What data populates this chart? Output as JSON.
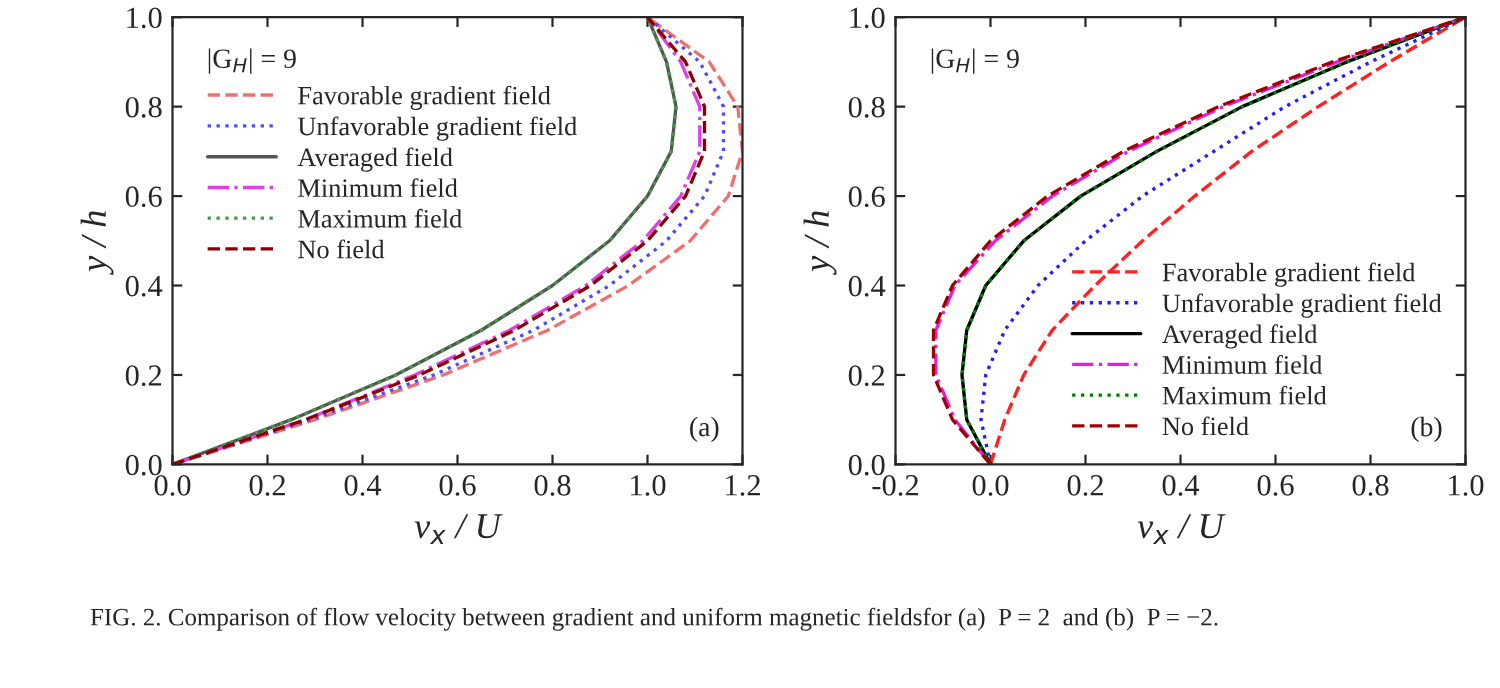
{
  "chart_data": [
    {
      "type": "line",
      "xlabel": "v$_{x}$ / U",
      "ylabel": "y / h",
      "annotations": [
        "|G$_{H}$| = 9",
        "(a)",
        "FIG. 2. Comparison of flow velocity between gradient and uniform magnetic fieldsfor (a)  P = 2  and (b)  P = −2."
      ],
      "xlim": [
        0,
        1.2
      ],
      "ylim": [
        0,
        1.0
      ],
      "xticks": [
        {
          "value": 0,
          "label": "0.0"
        },
        {
          "value": 0.2,
          "label": "0.2"
        },
        {
          "value": 0.4,
          "label": "0.4"
        },
        {
          "value": 0.6,
          "label": "0.6"
        },
        {
          "value": 0.8,
          "label": "0.8"
        },
        {
          "value": 1.0,
          "label": "1.0"
        },
        {
          "value": 1.2,
          "label": "1.2"
        }
      ],
      "yticks": [
        {
          "value": 0,
          "label": "0.0"
        },
        {
          "value": 0.2,
          "label": "0.2"
        },
        {
          "value": 0.4,
          "label": "0.4"
        },
        {
          "value": 0.6,
          "label": "0.6"
        },
        {
          "value": 0.8,
          "label": "0.8"
        },
        {
          "value": 1.0,
          "label": "1.0"
        }
      ],
      "legend": "top left",
      "grid": false,
      "series": [
        {
          "name": "Favorable gradient field",
          "color": "#f07070",
          "line_style": "dashed",
          "x": [
            0,
            0.3,
            0.57,
            0.79,
            0.96,
            1.09,
            1.17,
            1.2,
            1.19,
            1.13,
            1.0
          ],
          "values": [
            0,
            0.1,
            0.2,
            0.3,
            0.4,
            0.5,
            0.6,
            0.7,
            0.8,
            0.9,
            1.0
          ]
        },
        {
          "name": "Unfavorable gradient field",
          "color": "#4d4dff",
          "line_style": "dotted",
          "x": [
            0,
            0.29,
            0.55,
            0.76,
            0.92,
            1.04,
            1.12,
            1.16,
            1.16,
            1.11,
            1.0
          ],
          "values": [
            0,
            0.1,
            0.2,
            0.3,
            0.4,
            0.5,
            0.6,
            0.7,
            0.8,
            0.9,
            1.0
          ]
        },
        {
          "name": "Averaged field",
          "color": "#555555",
          "line_style": "solid",
          "x": [
            0,
            0.25,
            0.47,
            0.65,
            0.8,
            0.92,
            1.0,
            1.05,
            1.06,
            1.04,
            1.0
          ],
          "values": [
            0,
            0.1,
            0.2,
            0.3,
            0.4,
            0.5,
            0.6,
            0.7,
            0.8,
            0.9,
            1.0
          ]
        },
        {
          "name": "Minimum field",
          "color": "#e040e0",
          "line_style": "dashdot",
          "x": [
            0,
            0.28,
            0.51,
            0.71,
            0.87,
            0.99,
            1.07,
            1.11,
            1.11,
            1.07,
            1.0
          ],
          "values": [
            0,
            0.1,
            0.2,
            0.3,
            0.4,
            0.5,
            0.6,
            0.7,
            0.8,
            0.9,
            1.0
          ]
        },
        {
          "name": "Maximum field",
          "color": "#40a040",
          "line_style": "dotted",
          "x": [
            0,
            0.25,
            0.47,
            0.65,
            0.8,
            0.92,
            1.0,
            1.05,
            1.06,
            1.04,
            1.0
          ],
          "values": [
            0,
            0.1,
            0.2,
            0.3,
            0.4,
            0.5,
            0.6,
            0.7,
            0.8,
            0.9,
            1.0
          ]
        },
        {
          "name": "No field",
          "color": "#8b0000",
          "line_style": "dashed",
          "x": [
            0,
            0.28,
            0.52,
            0.72,
            0.88,
            1.0,
            1.08,
            1.12,
            1.12,
            1.08,
            1.0
          ],
          "values": [
            0,
            0.1,
            0.2,
            0.3,
            0.4,
            0.5,
            0.6,
            0.7,
            0.8,
            0.9,
            1.0
          ]
        }
      ]
    },
    {
      "type": "line",
      "xlabel": "v$_{x}$ / U",
      "ylabel": "y / h",
      "annotations": [
        "|G$_{H}$| = 9",
        "(b)"
      ],
      "xlim": [
        -0.2,
        1.0
      ],
      "ylim": [
        0,
        1.0
      ],
      "xticks": [
        {
          "value": -0.2,
          "label": "-0.2"
        },
        {
          "value": 0,
          "label": "0.0"
        },
        {
          "value": 0.2,
          "label": "0.2"
        },
        {
          "value": 0.4,
          "label": "0.4"
        },
        {
          "value": 0.6,
          "label": "0.6"
        },
        {
          "value": 0.8,
          "label": "0.8"
        },
        {
          "value": 1.0,
          "label": "1.0"
        }
      ],
      "yticks": [
        {
          "value": 0,
          "label": "0.0"
        },
        {
          "value": 0.2,
          "label": "0.2"
        },
        {
          "value": 0.4,
          "label": "0.4"
        },
        {
          "value": 0.6,
          "label": "0.6"
        },
        {
          "value": 0.8,
          "label": "0.8"
        },
        {
          "value": 1.0,
          "label": "1.0"
        }
      ],
      "legend": "bottom right",
      "grid": false,
      "series": [
        {
          "name": "Favorable gradient field",
          "color": "#ff2020",
          "line_style": "dashed",
          "x": [
            0,
            0.03,
            0.07,
            0.13,
            0.22,
            0.32,
            0.43,
            0.55,
            0.69,
            0.84,
            1.0
          ],
          "values": [
            0,
            0.1,
            0.2,
            0.3,
            0.4,
            0.5,
            0.6,
            0.7,
            0.8,
            0.9,
            1.0
          ]
        },
        {
          "name": "Unfavorable gradient field",
          "color": "#2020ff",
          "line_style": "dotted",
          "x": [
            0,
            -0.02,
            -0.01,
            0.03,
            0.1,
            0.2,
            0.32,
            0.47,
            0.62,
            0.8,
            1.0
          ],
          "values": [
            0,
            0.1,
            0.2,
            0.3,
            0.4,
            0.5,
            0.6,
            0.7,
            0.8,
            0.9,
            1.0
          ]
        },
        {
          "name": "Averaged field",
          "color": "#000000",
          "line_style": "solid",
          "x": [
            0,
            -0.05,
            -0.06,
            -0.05,
            -0.01,
            0.07,
            0.19,
            0.35,
            0.53,
            0.75,
            1.0
          ],
          "values": [
            0,
            0.1,
            0.2,
            0.3,
            0.4,
            0.5,
            0.6,
            0.7,
            0.8,
            0.9,
            1.0
          ]
        },
        {
          "name": "Minimum field",
          "color": "#e020e0",
          "line_style": "dashdot",
          "x": [
            0,
            -0.075,
            -0.115,
            -0.115,
            -0.075,
            0.01,
            0.13,
            0.29,
            0.49,
            0.73,
            1.0
          ],
          "values": [
            0,
            0.1,
            0.2,
            0.3,
            0.4,
            0.5,
            0.6,
            0.7,
            0.8,
            0.9,
            1.0
          ]
        },
        {
          "name": "Maximum field",
          "color": "#008000",
          "line_style": "dotted",
          "x": [
            0,
            -0.05,
            -0.06,
            -0.05,
            -0.01,
            0.07,
            0.19,
            0.35,
            0.53,
            0.75,
            1.0
          ],
          "values": [
            0,
            0.1,
            0.2,
            0.3,
            0.4,
            0.5,
            0.6,
            0.7,
            0.8,
            0.9,
            1.0
          ]
        },
        {
          "name": "No field",
          "color": "#a00000",
          "line_style": "dashed",
          "x": [
            0,
            -0.08,
            -0.12,
            -0.12,
            -0.08,
            0.0,
            0.12,
            0.28,
            0.48,
            0.72,
            1.0
          ],
          "values": [
            0,
            0.1,
            0.2,
            0.3,
            0.4,
            0.5,
            0.6,
            0.7,
            0.8,
            0.9,
            1.0
          ]
        }
      ]
    }
  ]
}
